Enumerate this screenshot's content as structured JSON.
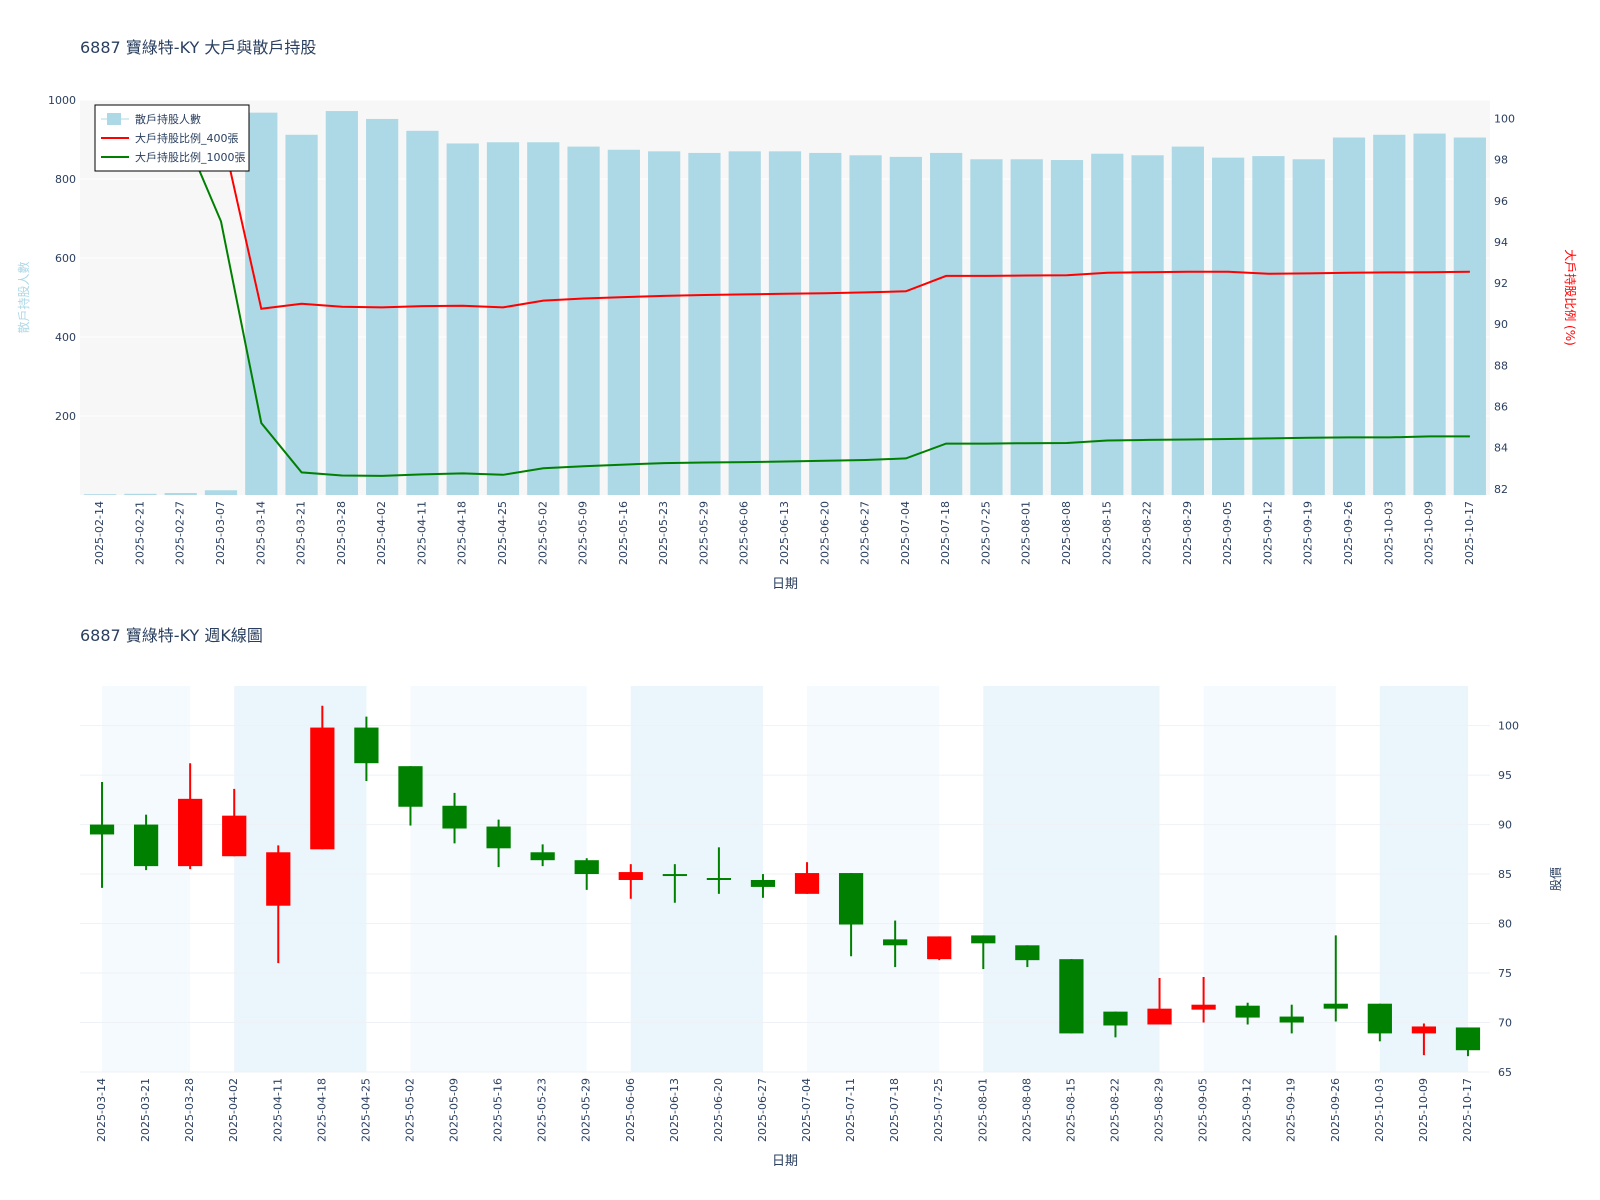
{
  "charts": [
    {
      "title": "6887 寶綠特-KY 大戶與散戶持股",
      "xlabel": "日期",
      "y1label": "散戶持股人數",
      "y2label": "大戶持股比例 (%)",
      "legend": [
        "散戶持股人數",
        "大戶持股比例_400張",
        "大戶持股比例_1000張"
      ]
    },
    {
      "title": "6887 寶綠特-KY 週K線圖",
      "xlabel": "日期",
      "ylabel": "股價"
    }
  ],
  "colors": {
    "bar": "#add8e6",
    "line400": "#ff0000",
    "line1000": "#008000",
    "up": "#ff0000",
    "down": "#008000",
    "band": "#e6f4ff",
    "plot_bg": "#f7f7f7",
    "y1label": "#add8e6",
    "y2label": "#ff0000"
  },
  "chart_data": [
    {
      "type": "bar+line",
      "title": "6887 寶綠特-KY 大戶與散戶持股",
      "xlabel": "日期",
      "ylabel": "散戶持股人數",
      "y2label": "大戶持股比例 (%)",
      "y1lim": [
        0,
        1000
      ],
      "y2lim": [
        81.7,
        100.9
      ],
      "y1ticks": [
        200,
        400,
        600,
        800,
        1000
      ],
      "y2ticks": [
        82,
        84,
        86,
        88,
        90,
        92,
        94,
        96,
        98,
        100
      ],
      "legend_position": "top-left",
      "categories": [
        "2025-02-14",
        "2025-02-21",
        "2025-02-27",
        "2025-03-07",
        "2025-03-14",
        "2025-03-21",
        "2025-03-28",
        "2025-04-02",
        "2025-04-11",
        "2025-04-18",
        "2025-04-25",
        "2025-05-02",
        "2025-05-09",
        "2025-05-16",
        "2025-05-23",
        "2025-05-29",
        "2025-06-06",
        "2025-06-13",
        "2025-06-20",
        "2025-06-27",
        "2025-07-04",
        "2025-07-18",
        "2025-07-25",
        "2025-08-01",
        "2025-08-08",
        "2025-08-15",
        "2025-08-22",
        "2025-08-29",
        "2025-09-05",
        "2025-09-12",
        "2025-09-19",
        "2025-09-26",
        "2025-10-03",
        "2025-10-09",
        "2025-10-17"
      ],
      "series": [
        {
          "name": "散戶持股人數",
          "type": "bar",
          "axis": "y1",
          "values": [
            2,
            3,
            5,
            12,
            968,
            912,
            972,
            952,
            922,
            890,
            893,
            893,
            882,
            874,
            870,
            866,
            870,
            870,
            866,
            860,
            856,
            866,
            850,
            850,
            848,
            864,
            860,
            882,
            854,
            858,
            850,
            905,
            912,
            915,
            905
          ]
        },
        {
          "name": "大戶持股比例_400張",
          "type": "line",
          "axis": "y2",
          "values": [
            null,
            null,
            99.6,
            99.5,
            90.75,
            91.0,
            90.85,
            90.82,
            90.88,
            90.9,
            90.82,
            91.15,
            91.25,
            91.32,
            91.38,
            91.42,
            91.45,
            91.48,
            91.51,
            91.55,
            91.6,
            92.35,
            92.35,
            92.37,
            92.38,
            92.5,
            92.53,
            92.55,
            92.55,
            92.45,
            92.47,
            92.5,
            92.52,
            92.53,
            92.55
          ]
        },
        {
          "name": "大戶持股比例_1000張",
          "type": "line",
          "axis": "y2",
          "values": [
            null,
            null,
            99.6,
            95.0,
            85.2,
            82.8,
            82.65,
            82.63,
            82.7,
            82.75,
            82.68,
            83.0,
            83.1,
            83.18,
            83.25,
            83.28,
            83.3,
            83.33,
            83.36,
            83.4,
            83.48,
            84.2,
            84.2,
            84.22,
            84.23,
            84.35,
            84.38,
            84.4,
            84.42,
            84.45,
            84.48,
            84.5,
            84.5,
            84.55,
            84.55
          ]
        }
      ]
    },
    {
      "type": "candlestick",
      "title": "6887 寶綠特-KY 週K線圖",
      "xlabel": "日期",
      "ylabel": "股價",
      "ylim": [
        65,
        104
      ],
      "yticks": [
        65,
        70,
        75,
        80,
        85,
        90,
        95,
        100
      ],
      "categories": [
        "2025-03-14",
        "2025-03-21",
        "2025-03-28",
        "2025-04-02",
        "2025-04-11",
        "2025-04-18",
        "2025-04-25",
        "2025-05-02",
        "2025-05-09",
        "2025-05-16",
        "2025-05-23",
        "2025-05-29",
        "2025-06-06",
        "2025-06-13",
        "2025-06-20",
        "2025-06-27",
        "2025-07-04",
        "2025-07-11",
        "2025-07-18",
        "2025-07-25",
        "2025-08-01",
        "2025-08-08",
        "2025-08-15",
        "2025-08-22",
        "2025-08-29",
        "2025-09-05",
        "2025-09-12",
        "2025-09-19",
        "2025-09-26",
        "2025-10-03",
        "2025-10-09",
        "2025-10-17"
      ],
      "candles": [
        {
          "open": 90.0,
          "high": 94.3,
          "low": 83.6,
          "close": 89.0
        },
        {
          "open": 90.0,
          "high": 91.0,
          "low": 85.4,
          "close": 85.8
        },
        {
          "open": 85.8,
          "high": 96.2,
          "low": 85.5,
          "close": 92.6
        },
        {
          "open": 86.8,
          "high": 93.6,
          "low": 86.8,
          "close": 90.9
        },
        {
          "open": 81.8,
          "high": 87.9,
          "low": 76.0,
          "close": 87.2
        },
        {
          "open": 87.5,
          "high": 102.0,
          "low": 87.5,
          "close": 99.8
        },
        {
          "open": 99.8,
          "high": 100.9,
          "low": 94.4,
          "close": 96.2
        },
        {
          "open": 95.9,
          "high": 95.9,
          "low": 89.9,
          "close": 91.8
        },
        {
          "open": 91.9,
          "high": 93.2,
          "low": 88.1,
          "close": 89.6
        },
        {
          "open": 89.8,
          "high": 90.5,
          "low": 85.7,
          "close": 87.6
        },
        {
          "open": 87.2,
          "high": 88.0,
          "low": 85.8,
          "close": 86.4
        },
        {
          "open": 86.4,
          "high": 86.6,
          "low": 83.4,
          "close": 85.0
        },
        {
          "open": 84.4,
          "high": 86.0,
          "low": 82.5,
          "close": 85.2
        },
        {
          "open": 85.0,
          "high": 86.0,
          "low": 82.1,
          "close": 84.8
        },
        {
          "open": 84.6,
          "high": 87.7,
          "low": 83.0,
          "close": 84.4
        },
        {
          "open": 84.4,
          "high": 85.0,
          "low": 82.6,
          "close": 83.7
        },
        {
          "open": 83.0,
          "high": 86.2,
          "low": 83.0,
          "close": 85.1
        },
        {
          "open": 85.1,
          "high": 85.1,
          "low": 76.7,
          "close": 79.9
        },
        {
          "open": 78.4,
          "high": 80.3,
          "low": 75.6,
          "close": 77.8
        },
        {
          "open": 76.4,
          "high": 78.7,
          "low": 76.3,
          "close": 78.7
        },
        {
          "open": 78.8,
          "high": 78.8,
          "low": 75.4,
          "close": 78.0
        },
        {
          "open": 77.8,
          "high": 77.8,
          "low": 75.6,
          "close": 76.3
        },
        {
          "open": 76.4,
          "high": 76.4,
          "low": 68.9,
          "close": 68.9
        },
        {
          "open": 71.1,
          "high": 71.1,
          "low": 68.5,
          "close": 69.7
        },
        {
          "open": 69.8,
          "high": 74.5,
          "low": 69.8,
          "close": 71.4
        },
        {
          "open": 71.3,
          "high": 74.6,
          "low": 70.0,
          "close": 71.8
        },
        {
          "open": 71.7,
          "high": 72.0,
          "low": 69.8,
          "close": 70.5
        },
        {
          "open": 70.6,
          "high": 71.8,
          "low": 68.9,
          "close": 70.0
        },
        {
          "open": 71.9,
          "high": 78.8,
          "low": 70.1,
          "close": 71.4
        },
        {
          "open": 71.9,
          "high": 71.9,
          "low": 68.1,
          "close": 68.9
        },
        {
          "open": 68.9,
          "high": 69.9,
          "low": 66.7,
          "close": 69.6
        },
        {
          "open": 69.5,
          "high": 69.5,
          "low": 66.6,
          "close": 67.2
        }
      ],
      "shaded_bands": [
        [
          "2025-03-14",
          "2025-03-28"
        ],
        [
          "2025-04-02",
          "2025-04-25"
        ],
        [
          "2025-05-02",
          "2025-05-29"
        ],
        [
          "2025-06-06",
          "2025-06-27"
        ],
        [
          "2025-07-04",
          "2025-07-25"
        ],
        [
          "2025-08-01",
          "2025-08-29"
        ],
        [
          "2025-09-05",
          "2025-09-26"
        ],
        [
          "2025-10-03",
          "2025-10-17"
        ]
      ]
    }
  ]
}
